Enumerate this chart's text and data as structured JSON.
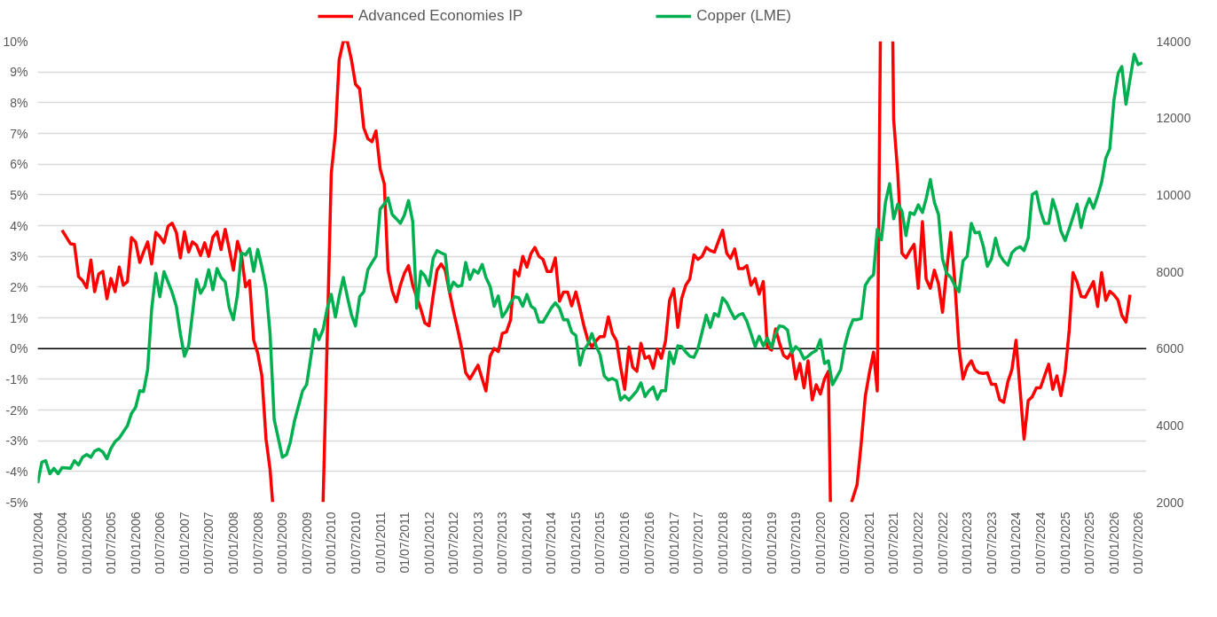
{
  "chart_data": {
    "type": "line",
    "legend": "top",
    "grid": "y",
    "xlim": [
      "2004-01-01",
      "2026-09-01"
    ],
    "xticks": [
      {
        "value": "2004-01-01",
        "label": "01/01/2004"
      },
      {
        "value": "2004-07-01",
        "label": "01/07/2004"
      },
      {
        "value": "2005-01-01",
        "label": "01/01/2005"
      },
      {
        "value": "2005-07-01",
        "label": "01/07/2005"
      },
      {
        "value": "2006-01-01",
        "label": "01/01/2006"
      },
      {
        "value": "2006-07-01",
        "label": "01/07/2006"
      },
      {
        "value": "2007-01-01",
        "label": "01/01/2007"
      },
      {
        "value": "2007-07-01",
        "label": "01/07/2007"
      },
      {
        "value": "2008-01-01",
        "label": "01/01/2008"
      },
      {
        "value": "2008-07-01",
        "label": "01/07/2008"
      },
      {
        "value": "2009-01-01",
        "label": "01/01/2009"
      },
      {
        "value": "2009-07-01",
        "label": "01/07/2009"
      },
      {
        "value": "2010-01-01",
        "label": "01/01/2010"
      },
      {
        "value": "2010-07-01",
        "label": "01/07/2010"
      },
      {
        "value": "2011-01-01",
        "label": "01/01/2011"
      },
      {
        "value": "2011-07-01",
        "label": "01/07/2011"
      },
      {
        "value": "2012-01-01",
        "label": "01/01/2012"
      },
      {
        "value": "2012-07-01",
        "label": "01/07/2012"
      },
      {
        "value": "2013-01-01",
        "label": "01/01/2013"
      },
      {
        "value": "2013-07-01",
        "label": "01/07/2013"
      },
      {
        "value": "2014-01-01",
        "label": "01/01/2014"
      },
      {
        "value": "2014-07-01",
        "label": "01/07/2014"
      },
      {
        "value": "2015-01-01",
        "label": "01/01/2015"
      },
      {
        "value": "2015-07-01",
        "label": "01/07/2015"
      },
      {
        "value": "2016-01-01",
        "label": "01/01/2016"
      },
      {
        "value": "2016-07-01",
        "label": "01/07/2016"
      },
      {
        "value": "2017-01-01",
        "label": "01/01/2017"
      },
      {
        "value": "2017-07-01",
        "label": "01/07/2017"
      },
      {
        "value": "2018-01-01",
        "label": "01/01/2018"
      },
      {
        "value": "2018-07-01",
        "label": "01/07/2018"
      },
      {
        "value": "2019-01-01",
        "label": "01/01/2019"
      },
      {
        "value": "2019-07-01",
        "label": "01/07/2019"
      },
      {
        "value": "2020-01-01",
        "label": "01/01/2020"
      },
      {
        "value": "2020-07-01",
        "label": "01/07/2020"
      },
      {
        "value": "2021-01-01",
        "label": "01/01/2021"
      },
      {
        "value": "2021-07-01",
        "label": "01/07/2021"
      },
      {
        "value": "2022-01-01",
        "label": "01/01/2022"
      },
      {
        "value": "2022-07-01",
        "label": "01/07/2022"
      },
      {
        "value": "2023-01-01",
        "label": "01/01/2023"
      },
      {
        "value": "2023-07-01",
        "label": "01/07/2023"
      },
      {
        "value": "2024-01-01",
        "label": "01/01/2024"
      },
      {
        "value": "2024-07-01",
        "label": "01/07/2024"
      },
      {
        "value": "2025-01-01",
        "label": "01/01/2025"
      },
      {
        "value": "2025-07-01",
        "label": "01/07/2025"
      },
      {
        "value": "2026-01-01",
        "label": "01/01/2026"
      },
      {
        "value": "2026-07-01",
        "label": "01/07/2026"
      }
    ],
    "ylim": [
      -5,
      10
    ],
    "yticks": [
      {
        "value": -5,
        "label": "-5%"
      },
      {
        "value": -4,
        "label": "-4%"
      },
      {
        "value": -3,
        "label": "-3%"
      },
      {
        "value": -2,
        "label": "-2%"
      },
      {
        "value": -1,
        "label": "-1%"
      },
      {
        "value": 0,
        "label": "0%"
      },
      {
        "value": 1,
        "label": "1%"
      },
      {
        "value": 2,
        "label": "2%"
      },
      {
        "value": 3,
        "label": "3%"
      },
      {
        "value": 4,
        "label": "4%"
      },
      {
        "value": 5,
        "label": "5%"
      },
      {
        "value": 6,
        "label": "6%"
      },
      {
        "value": 7,
        "label": "7%"
      },
      {
        "value": 8,
        "label": "8%"
      },
      {
        "value": 9,
        "label": "9%"
      },
      {
        "value": 10,
        "label": "10%"
      }
    ],
    "y2lim": [
      2000,
      14000
    ],
    "y2ticks": [
      2000,
      4000,
      6000,
      8000,
      10000,
      12000,
      14000
    ],
    "series": [
      {
        "name": "Advanced Economies IP",
        "color": "#ff0000",
        "x": [
          "2004-07",
          "2004-09",
          "2004-10",
          "2004-11",
          "2004-12",
          "2005-01",
          "2005-02",
          "2005-03",
          "2005-04",
          "2005-05",
          "2005-06",
          "2005-07",
          "2005-08",
          "2005-09",
          "2005-10",
          "2005-11",
          "2005-12",
          "2006-01",
          "2006-02",
          "2006-03",
          "2006-04",
          "2006-05",
          "2006-06",
          "2006-07",
          "2006-08",
          "2006-09",
          "2006-10",
          "2006-11",
          "2006-12",
          "2007-01",
          "2007-02",
          "2007-03",
          "2007-04",
          "2007-05",
          "2007-06",
          "2007-07",
          "2007-08",
          "2007-09",
          "2007-10",
          "2007-11",
          "2007-12",
          "2008-01",
          "2008-02",
          "2008-03",
          "2008-04",
          "2008-05",
          "2008-06",
          "2008-07",
          "2008-08",
          "2008-09",
          "2008-10",
          "2008-10-20",
          "2009-03",
          "2009-11",
          "2009-12",
          "2010-01",
          "2010-02",
          "2010-03",
          "2010-04",
          "2010-05",
          "2010-06",
          "2010-07",
          "2010-08",
          "2010-09",
          "2010-10",
          "2010-11",
          "2010-12",
          "2011-01",
          "2011-02",
          "2011-03",
          "2011-04",
          "2011-05",
          "2011-06",
          "2011-07",
          "2011-08",
          "2011-09",
          "2011-11",
          "2011-12",
          "2012-01",
          "2012-02",
          "2012-03",
          "2012-04",
          "2012-05",
          "2012-06",
          "2012-07",
          "2012-08",
          "2012-09",
          "2012-10",
          "2012-11",
          "2012-12",
          "2013-01",
          "2013-02",
          "2013-03",
          "2013-04",
          "2013-05",
          "2013-06",
          "2013-07",
          "2013-08",
          "2013-09",
          "2013-10",
          "2013-11",
          "2013-12",
          "2014-01",
          "2014-02",
          "2014-03",
          "2014-04",
          "2014-05",
          "2014-06",
          "2014-07",
          "2014-08",
          "2014-09",
          "2014-10",
          "2014-11",
          "2014-12",
          "2015-01",
          "2015-02",
          "2015-03",
          "2015-04",
          "2015-05",
          "2015-06",
          "2015-07",
          "2015-08",
          "2015-09",
          "2015-10",
          "2015-11",
          "2015-12",
          "2016-01",
          "2016-02",
          "2016-03",
          "2016-04",
          "2016-05",
          "2016-06",
          "2016-07",
          "2016-08",
          "2016-09",
          "2016-10",
          "2016-11",
          "2016-12",
          "2017-01",
          "2017-02",
          "2017-03",
          "2017-04",
          "2017-05",
          "2017-06",
          "2017-07",
          "2017-08",
          "2017-09",
          "2017-10",
          "2017-11",
          "2017-12",
          "2018-01",
          "2018-02",
          "2018-03",
          "2018-04",
          "2018-05",
          "2018-06",
          "2018-07",
          "2018-08",
          "2018-09",
          "2018-10",
          "2018-11",
          "2018-12",
          "2019-01",
          "2019-02",
          "2019-03",
          "2019-04",
          "2019-05",
          "2019-06",
          "2019-07",
          "2019-08",
          "2019-09",
          "2019-10",
          "2019-11",
          "2019-12",
          "2020-01",
          "2020-02",
          "2020-03",
          "2020-03-16",
          "2020-05",
          "2020-08-21",
          "2020-10",
          "2020-11",
          "2020-12",
          "2021-01",
          "2021-02",
          "2021-03",
          "2021-03-24",
          "2021-05",
          "2021-06-25",
          "2021-07",
          "2021-08",
          "2021-09",
          "2021-10",
          "2021-11",
          "2021-12",
          "2022-01",
          "2022-02",
          "2022-03",
          "2022-04",
          "2022-05",
          "2022-06",
          "2022-07",
          "2022-08",
          "2022-09",
          "2022-10",
          "2022-11",
          "2022-12",
          "2023-01",
          "2023-02",
          "2023-03",
          "2023-04",
          "2023-05",
          "2023-06",
          "2023-07",
          "2023-08",
          "2023-09",
          "2023-10",
          "2023-11",
          "2023-12",
          "2024-01",
          "2024-02",
          "2024-03",
          "2024-04",
          "2024-05",
          "2024-06",
          "2024-07",
          "2024-08",
          "2024-09",
          "2024-10",
          "2024-11",
          "2024-12",
          "2025-01",
          "2025-02",
          "2025-03",
          "2025-04",
          "2025-05",
          "2025-06",
          "2025-07",
          "2025-08",
          "2025-09",
          "2025-10",
          "2025-11",
          "2025-12",
          "2026-01",
          "2026-02",
          "2026-03",
          "2026-04",
          "2026-05"
        ],
        "values": [
          3.85,
          3.41,
          3.39,
          2.34,
          2.21,
          1.98,
          2.88,
          1.85,
          2.43,
          2.51,
          1.62,
          2.28,
          1.85,
          2.65,
          2.06,
          2.18,
          3.61,
          3.47,
          2.8,
          3.14,
          3.47,
          2.75,
          3.78,
          3.64,
          3.44,
          3.98,
          4.08,
          3.78,
          2.95,
          3.8,
          3.14,
          3.47,
          3.36,
          3.03,
          3.44,
          3.0,
          3.62,
          3.8,
          3.22,
          3.88,
          3.24,
          2.55,
          3.49,
          3.05,
          2.01,
          2.21,
          0.27,
          -0.15,
          -0.89,
          -2.95,
          -3.93,
          -5.0,
          null,
          -5.0,
          0.19,
          5.7,
          7.0,
          9.4,
          10.0,
          10.0,
          9.39,
          8.6,
          8.45,
          7.18,
          6.83,
          6.73,
          7.08,
          5.85,
          5.36,
          2.55,
          1.88,
          1.52,
          2.06,
          2.45,
          2.7,
          2.06,
          1.28,
          0.83,
          0.74,
          1.72,
          2.55,
          2.75,
          2.55,
          1.86,
          1.23,
          0.64,
          0.0,
          -0.79,
          -0.99,
          -0.77,
          -0.54,
          -0.99,
          -1.38,
          -0.25,
          0.0,
          -0.1,
          0.49,
          0.54,
          0.93,
          2.55,
          2.36,
          3.0,
          2.65,
          3.1,
          3.29,
          3.0,
          2.9,
          2.51,
          2.51,
          2.95,
          1.54,
          1.84,
          1.84,
          1.39,
          1.84,
          1.3,
          0.76,
          0.27,
          0.05,
          0.25,
          0.39,
          0.39,
          1.03,
          0.49,
          0.25,
          -0.59,
          -1.33,
          0.05,
          -0.61,
          -0.74,
          0.17,
          -0.32,
          -0.25,
          -0.64,
          -0.02,
          -0.32,
          0.25,
          1.57,
          1.94,
          0.69,
          1.62,
          2.06,
          2.26,
          3.05,
          2.9,
          3.0,
          3.29,
          3.19,
          3.14,
          3.49,
          3.85,
          3.1,
          2.93,
          3.24,
          2.6,
          2.6,
          2.7,
          2.06,
          2.28,
          1.77,
          2.18,
          0.05,
          -0.05,
          0.64,
          0.19,
          -0.22,
          -0.32,
          -0.1,
          -0.99,
          -0.49,
          -1.28,
          -0.4,
          -1.67,
          -1.18,
          -1.48,
          -0.99,
          -0.74,
          -5.0,
          null,
          -5.0,
          -4.43,
          -3.08,
          -1.57,
          -0.79,
          -0.12,
          -1.38,
          10.0,
          null,
          10.0,
          7.47,
          5.7,
          3.1,
          2.95,
          3.19,
          3.39,
          1.96,
          4.13,
          2.26,
          1.96,
          2.55,
          2.11,
          1.18,
          2.55,
          3.78,
          2.16,
          0.05,
          -0.99,
          -0.59,
          -0.4,
          -0.69,
          -0.79,
          -0.81,
          -0.79,
          -1.16,
          -1.16,
          -1.67,
          -1.75,
          -1.08,
          -0.69,
          0.27,
          -1.38,
          -2.95,
          -1.69,
          -1.57,
          -1.28,
          -1.28,
          -0.89,
          -0.51,
          -1.33,
          -0.89,
          -1.53,
          -0.79,
          0.59,
          2.47,
          2.16,
          1.69,
          1.67,
          1.92,
          2.18,
          1.37,
          2.47,
          1.57,
          1.86,
          1.75,
          1.57,
          1.08,
          0.86,
          1.75
        ]
      },
      {
        "name": "Copper (LME)",
        "color": "#00b050",
        "axis": "y2",
        "x": [
          "2004-01",
          "2004-02",
          "2004-03",
          "2004-04",
          "2004-05",
          "2004-06",
          "2004-07",
          "2004-09",
          "2004-10",
          "2004-11",
          "2004-12",
          "2005-01",
          "2005-02",
          "2005-03",
          "2005-04",
          "2005-05",
          "2005-06",
          "2005-07",
          "2005-08",
          "2005-09",
          "2005-10",
          "2005-11",
          "2005-12",
          "2006-01",
          "2006-02",
          "2006-03",
          "2006-04",
          "2006-05",
          "2006-06",
          "2006-07",
          "2006-08",
          "2006-10",
          "2006-11",
          "2006-12",
          "2007-01",
          "2007-02",
          "2007-04",
          "2007-05",
          "2007-06",
          "2007-07",
          "2007-08",
          "2007-09",
          "2007-10",
          "2007-11",
          "2007-12",
          "2008-01",
          "2008-02",
          "2008-03",
          "2008-04",
          "2008-05",
          "2008-06",
          "2008-07",
          "2008-08",
          "2008-09",
          "2008-10",
          "2008-11",
          "2008-12",
          "2009-01",
          "2009-02",
          "2009-03",
          "2009-04",
          "2009-06",
          "2009-07",
          "2009-08",
          "2009-09",
          "2009-10",
          "2009-11",
          "2009-12",
          "2010-01",
          "2010-02",
          "2010-03",
          "2010-04",
          "2010-05",
          "2010-06",
          "2010-07",
          "2010-08",
          "2010-09",
          "2010-10",
          "2010-11",
          "2010-12",
          "2011-01",
          "2011-02",
          "2011-03",
          "2011-04",
          "2011-05",
          "2011-06",
          "2011-07",
          "2011-08",
          "2011-09",
          "2011-10",
          "2011-11",
          "2011-12",
          "2012-01",
          "2012-02",
          "2012-03",
          "2012-04",
          "2012-05",
          "2012-06",
          "2012-07",
          "2012-08",
          "2012-09",
          "2012-10",
          "2012-11",
          "2012-12",
          "2013-01",
          "2013-02",
          "2013-03",
          "2013-04",
          "2013-05",
          "2013-06",
          "2013-07",
          "2013-08",
          "2013-09",
          "2013-10",
          "2013-11",
          "2013-12",
          "2014-01",
          "2014-02",
          "2014-03",
          "2014-04",
          "2014-05",
          "2014-06",
          "2014-07",
          "2014-08",
          "2014-09",
          "2014-10",
          "2014-11",
          "2014-12",
          "2015-01",
          "2015-02",
          "2015-03",
          "2015-04",
          "2015-05",
          "2015-06",
          "2015-07",
          "2015-08",
          "2015-09",
          "2015-10",
          "2015-11",
          "2015-12",
          "2016-01",
          "2016-02",
          "2016-03",
          "2016-04",
          "2016-05",
          "2016-06",
          "2016-07",
          "2016-08",
          "2016-09",
          "2016-10",
          "2016-11",
          "2016-12",
          "2017-01",
          "2017-02",
          "2017-03",
          "2017-04",
          "2017-05",
          "2017-06",
          "2017-07",
          "2017-08",
          "2017-09",
          "2017-10",
          "2017-11",
          "2017-12",
          "2018-01",
          "2018-02",
          "2018-03",
          "2018-04",
          "2018-05",
          "2018-06",
          "2018-07",
          "2018-08",
          "2018-09",
          "2018-10",
          "2018-11",
          "2018-12",
          "2019-01",
          "2019-02",
          "2019-03",
          "2019-04",
          "2019-05",
          "2019-06",
          "2019-07",
          "2019-08",
          "2019-09",
          "2019-10",
          "2019-11",
          "2019-12",
          "2020-01",
          "2020-02",
          "2020-03",
          "2020-04",
          "2020-05",
          "2020-06",
          "2020-07",
          "2020-08",
          "2020-09",
          "2020-10",
          "2020-11",
          "2020-12",
          "2021-01",
          "2021-02",
          "2021-03",
          "2021-04",
          "2021-05",
          "2021-06",
          "2021-07",
          "2021-08",
          "2021-09",
          "2021-10",
          "2021-11",
          "2021-12",
          "2022-01",
          "2022-02",
          "2022-03",
          "2022-04",
          "2022-05",
          "2022-06",
          "2022-07",
          "2022-08",
          "2022-09",
          "2022-10",
          "2022-11",
          "2022-12",
          "2023-01",
          "2023-02",
          "2023-03",
          "2023-04",
          "2023-05",
          "2023-06",
          "2023-07",
          "2023-08",
          "2023-09",
          "2023-10",
          "2023-11",
          "2023-12",
          "2024-01",
          "2024-02",
          "2024-03",
          "2024-04",
          "2024-05",
          "2024-06",
          "2024-07",
          "2024-08",
          "2024-09",
          "2024-10",
          "2024-11",
          "2024-12",
          "2025-01",
          "2025-02",
          "2025-03",
          "2025-04",
          "2025-05",
          "2025-06",
          "2025-07",
          "2025-08",
          "2025-09",
          "2025-10",
          "2025-11",
          "2025-12",
          "2026-01",
          "2026-02",
          "2026-03",
          "2026-04",
          "2026-05",
          "2026-06",
          "2026-07",
          "2026-08"
        ],
        "values": [
          2500,
          3040,
          3080,
          2740,
          2880,
          2740,
          2900,
          2880,
          3080,
          2970,
          3170,
          3240,
          3170,
          3330,
          3380,
          3310,
          3130,
          3400,
          3580,
          3670,
          3830,
          3990,
          4310,
          4470,
          4900,
          4880,
          5450,
          7030,
          7960,
          7350,
          8000,
          7460,
          7100,
          6390,
          5800,
          6070,
          7800,
          7440,
          7620,
          8050,
          7530,
          8080,
          7850,
          7730,
          7070,
          6750,
          7410,
          8490,
          8440,
          8600,
          8010,
          8580,
          8120,
          7570,
          6390,
          4150,
          3670,
          3170,
          3240,
          3560,
          4110,
          4900,
          5060,
          5770,
          6500,
          6230,
          6500,
          7030,
          7410,
          6820,
          7350,
          7850,
          7350,
          6870,
          6590,
          7350,
          7480,
          8050,
          8240,
          8400,
          9630,
          9760,
          9920,
          9490,
          9380,
          9260,
          9470,
          9850,
          9310,
          7050,
          8010,
          7890,
          7640,
          8350,
          8550,
          8490,
          8440,
          7480,
          7730,
          7620,
          7640,
          8240,
          7800,
          8050,
          7960,
          8190,
          7850,
          7620,
          7100,
          7370,
          6820,
          6980,
          7190,
          7350,
          7320,
          7100,
          7410,
          7100,
          7030,
          6690,
          6690,
          6870,
          7050,
          7190,
          7050,
          6750,
          6750,
          6430,
          6340,
          5570,
          5950,
          6110,
          6390,
          6070,
          5840,
          5290,
          5180,
          5220,
          5160,
          4660,
          4770,
          4660,
          4770,
          4900,
          5110,
          4750,
          4900,
          5000,
          4680,
          4900,
          4900,
          5910,
          5610,
          6070,
          6050,
          5910,
          5800,
          5770,
          6000,
          6430,
          6870,
          6550,
          6910,
          6840,
          7320,
          7190,
          6980,
          6780,
          6870,
          6910,
          6710,
          6390,
          6050,
          6320,
          6070,
          6270,
          6020,
          6390,
          6590,
          6570,
          6480,
          5890,
          6050,
          5950,
          5730,
          5800,
          5890,
          5950,
          6230,
          5610,
          5680,
          5060,
          5250,
          5450,
          6070,
          6480,
          6750,
          6750,
          6780,
          7640,
          7820,
          7920,
          9100,
          8830,
          9810,
          10290,
          9380,
          9760,
          9580,
          8940,
          9540,
          9490,
          9740,
          9540,
          9900,
          10400,
          9810,
          9490,
          8330,
          7960,
          7850,
          7640,
          7480,
          8280,
          8400,
          9260,
          9010,
          9030,
          8670,
          8140,
          8330,
          8870,
          8440,
          8280,
          8170,
          8490,
          8600,
          8650,
          8550,
          8870,
          10010,
          10080,
          9580,
          9260,
          9260,
          9880,
          9540,
          9060,
          8810,
          9120,
          9420,
          9760,
          9150,
          9630,
          9900,
          9650,
          9970,
          10330,
          10950,
          11200,
          12460,
          13160,
          13340,
          12360,
          13000,
          13660,
          13390,
          13440
        ]
      }
    ]
  }
}
